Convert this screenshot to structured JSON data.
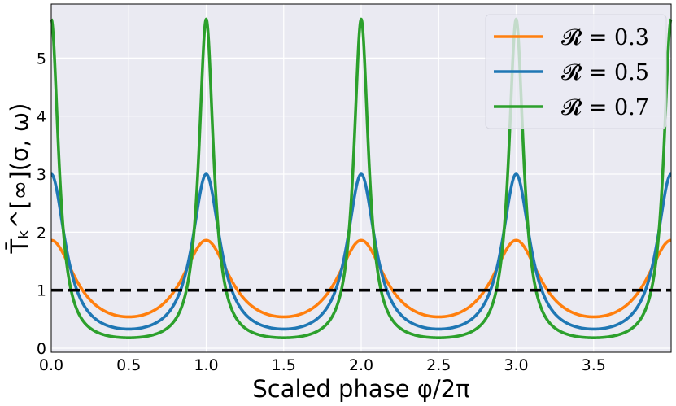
{
  "chart_data": {
    "type": "line",
    "title": "",
    "xlabel": "Scaled phase φ/2π",
    "ylabel": "T̄ₖ^[∞](σ, ω)",
    "xlim": [
      0.0,
      4.0
    ],
    "ylim": [
      -0.07,
      5.93
    ],
    "x_ticks": [
      0.0,
      0.5,
      1.0,
      1.5,
      2.0,
      2.5,
      3.0,
      3.5
    ],
    "x_tick_labels": [
      "0.0",
      "0.5",
      "1.0",
      "1.5",
      "2.0",
      "2.5",
      "3.0",
      "3.5"
    ],
    "y_ticks": [
      0,
      1,
      2,
      3,
      4,
      5
    ],
    "y_tick_labels": [
      "0",
      "1",
      "2",
      "3",
      "4",
      "5"
    ],
    "grid": true,
    "legend_position": "top-right",
    "series": [
      {
        "name": "𝓡 = 0.3",
        "R": 0.3,
        "color": "#ff7f0e",
        "peak": 1.86,
        "trough": 0.54
      },
      {
        "name": "𝓡 = 0.5",
        "R": 0.5,
        "color": "#1f77b4",
        "peak": 3.0,
        "trough": 0.33
      },
      {
        "name": "𝓡 = 0.7",
        "R": 0.7,
        "color": "#2ca02c",
        "peak": 5.67,
        "trough": 0.18
      }
    ],
    "reference_line": {
      "y": 1.0,
      "style": "dashed",
      "color": "#000000"
    }
  },
  "colors": {
    "plot_background": "#eaeaf2",
    "grid": "#ffffff",
    "frame": "#000000"
  }
}
